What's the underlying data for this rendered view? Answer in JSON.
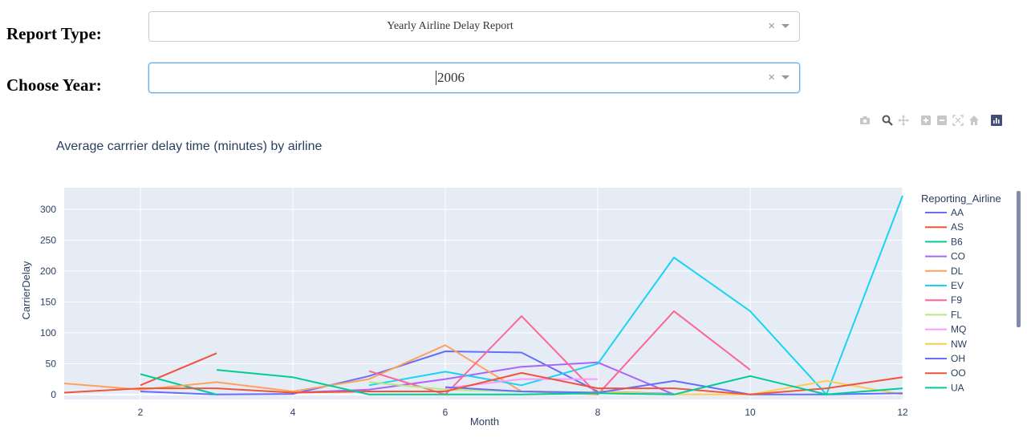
{
  "form": {
    "report_label": "Report Type:",
    "report_value": "Yearly Airline Delay Report",
    "year_label": "Choose Year:",
    "year_value": "2006",
    "clear_glyph": "×"
  },
  "modebar": [
    "camera-icon",
    "zoom-icon",
    "pan-icon",
    "zoom-in-icon",
    "zoom-out-icon",
    "autoscale-icon",
    "reset-axes-icon",
    "plotly-logo-icon"
  ],
  "chart_data": {
    "type": "line",
    "title": "Average carrrier delay time (minutes) by airline",
    "xlabel": "Month",
    "ylabel": "CarrierDelay",
    "xlim": [
      1,
      12
    ],
    "ylim": [
      -8,
      335
    ],
    "xticks": [
      2,
      4,
      6,
      8,
      10,
      12
    ],
    "yticks": [
      0,
      50,
      100,
      150,
      200,
      250,
      300
    ],
    "grid": true,
    "legend_title": "Reporting_Airline",
    "legend_position": "right",
    "series": [
      {
        "name": "AA",
        "color": "#636efa",
        "x": [
          2,
          3,
          4,
          5,
          6,
          7,
          8,
          9
        ],
        "y": [
          5,
          0,
          1,
          30,
          70,
          68,
          5,
          1
        ]
      },
      {
        "name": "AS",
        "color": "#ef553b",
        "x": [
          2,
          3
        ],
        "y": [
          15,
          67
        ]
      },
      {
        "name": "B6",
        "color": "#00cc96",
        "x": [
          2,
          3
        ],
        "y": [
          33,
          0
        ]
      },
      {
        "name": "CO",
        "color": "#ab63fa",
        "x": [
          4,
          5,
          6,
          7,
          8,
          9
        ],
        "y": [
          3,
          8,
          25,
          45,
          52,
          0
        ]
      },
      {
        "name": "DL",
        "color": "#ffa15a",
        "x": [
          1,
          2,
          3,
          4,
          5,
          6,
          7,
          8
        ],
        "y": [
          18,
          8,
          20,
          5,
          25,
          80,
          5,
          0
        ]
      },
      {
        "name": "EV",
        "color": "#19d3f3",
        "x": [
          5,
          6,
          7,
          8,
          9,
          10,
          11,
          12
        ],
        "y": [
          15,
          37,
          15,
          50,
          222,
          135,
          0,
          322
        ]
      },
      {
        "name": "F9",
        "color": "#ff6692",
        "x": [
          5,
          6,
          7,
          8,
          9,
          10
        ],
        "y": [
          38,
          0,
          127,
          0,
          135,
          40
        ]
      },
      {
        "name": "FL",
        "color": "#b6e880",
        "x": [
          5,
          6,
          7,
          8
        ],
        "y": [
          20,
          8,
          5,
          3
        ]
      },
      {
        "name": "MQ",
        "color": "#ff97ff",
        "x": [
          6,
          7,
          8
        ],
        "y": [
          10,
          25,
          25
        ]
      },
      {
        "name": "NW",
        "color": "#fecb52",
        "x": [
          8,
          9,
          10,
          11,
          12
        ],
        "y": [
          5,
          0,
          0,
          22,
          0
        ]
      },
      {
        "name": "OH",
        "color": "#636efa",
        "x": [
          6,
          7,
          8,
          9,
          10,
          11,
          12
        ],
        "y": [
          12,
          5,
          3,
          22,
          0,
          0,
          2
        ]
      },
      {
        "name": "OO",
        "color": "#ef553b",
        "x": [
          1,
          2,
          3,
          4,
          5,
          6,
          7,
          8,
          9,
          10,
          11,
          12
        ],
        "y": [
          3,
          10,
          10,
          3,
          5,
          5,
          35,
          10,
          10,
          0,
          10,
          28
        ]
      },
      {
        "name": "UA",
        "color": "#00cc96",
        "x": [
          3,
          4,
          5,
          6,
          7,
          8,
          9,
          10,
          11,
          12
        ],
        "y": [
          40,
          28,
          0,
          0,
          0,
          2,
          0,
          30,
          0,
          10
        ]
      }
    ]
  }
}
